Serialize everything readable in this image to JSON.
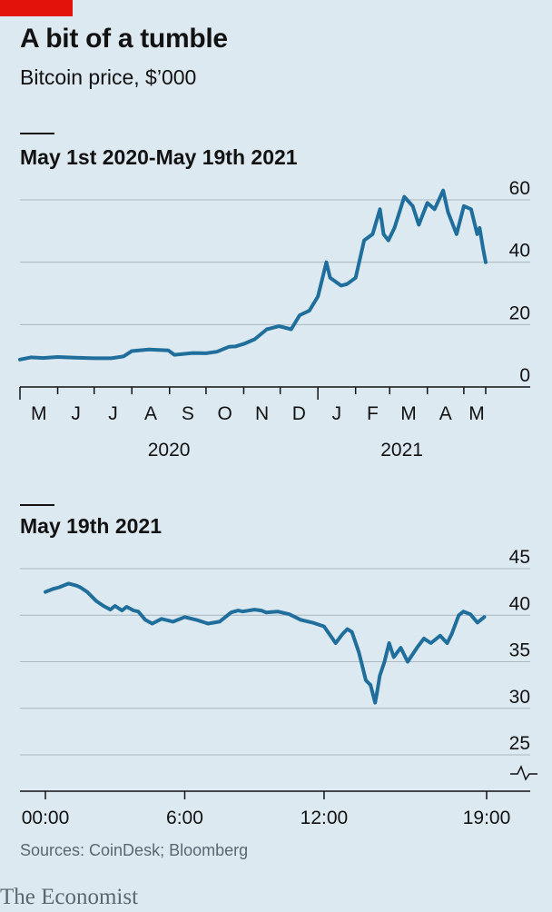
{
  "header": {
    "title": "A bit of a tumble",
    "subtitle": "Bitcoin price, $’000"
  },
  "footer": {
    "source": "Sources: CoinDesk; Bloomberg",
    "logo": "The Economist"
  },
  "colors": {
    "line": "#1f6e9c",
    "grid": "#aab6c0",
    "accent_red": "#e3120b"
  },
  "chart_data": [
    {
      "type": "line",
      "title": "May 1st 2020-May 19th 2021",
      "y_ticks": [
        0,
        20,
        40,
        60
      ],
      "ylim": [
        0,
        60
      ],
      "month_labels": [
        "M",
        "J",
        "J",
        "A",
        "S",
        "O",
        "N",
        "D",
        "J",
        "F",
        "M",
        "A",
        "M"
      ],
      "year_labels": [
        "2020",
        "2021"
      ],
      "series": [
        {
          "x": [
            "2020-05-01",
            "2020-05-10",
            "2020-05-20",
            "2020-06-01",
            "2020-06-15",
            "2020-07-01",
            "2020-07-15",
            "2020-07-25",
            "2020-08-01",
            "2020-08-15",
            "2020-08-31",
            "2020-09-05",
            "2020-09-20",
            "2020-10-01",
            "2020-10-10",
            "2020-10-20",
            "2020-10-25",
            "2020-11-01",
            "2020-11-10",
            "2020-11-20",
            "2020-11-25",
            "2020-11-30",
            "2020-12-10",
            "2020-12-17",
            "2020-12-25",
            "2021-01-01",
            "2021-01-08",
            "2021-01-11",
            "2021-01-20",
            "2021-01-25",
            "2021-02-01",
            "2021-02-08",
            "2021-02-15",
            "2021-02-21",
            "2021-02-24",
            "2021-02-28",
            "2021-03-05",
            "2021-03-13",
            "2021-03-20",
            "2021-03-25",
            "2021-04-01",
            "2021-04-07",
            "2021-04-14",
            "2021-04-18",
            "2021-04-25",
            "2021-05-01",
            "2021-05-07",
            "2021-05-12",
            "2021-05-14",
            "2021-05-17",
            "2021-05-19"
          ],
          "y": [
            8.8,
            9.5,
            9.3,
            9.6,
            9.4,
            9.2,
            9.2,
            9.8,
            11.5,
            12.0,
            11.7,
            10.3,
            10.9,
            10.8,
            11.3,
            12.9,
            13.0,
            13.8,
            15.3,
            18.5,
            19.0,
            19.5,
            18.5,
            23.0,
            24.5,
            29.0,
            40.0,
            35.0,
            32.5,
            33.0,
            35.0,
            47.0,
            49.0,
            57.0,
            49.0,
            47.0,
            51.0,
            61.0,
            58.0,
            52.0,
            59.0,
            57.0,
            63.0,
            56.0,
            49.0,
            58.0,
            57.0,
            49.0,
            51.0,
            44.0,
            40.0
          ]
        }
      ]
    },
    {
      "type": "line",
      "title": "May 19th 2021",
      "y_ticks": [
        25,
        30,
        35,
        40,
        45
      ],
      "ylim": [
        25,
        45
      ],
      "x_ticks": [
        "00:00",
        "6:00",
        "12:00",
        "19:00"
      ],
      "series": [
        {
          "x": [
            0,
            0.3,
            0.6,
            1.0,
            1.3,
            1.5,
            1.8,
            2.2,
            2.5,
            2.8,
            3.0,
            3.3,
            3.5,
            3.8,
            4.0,
            4.3,
            4.6,
            5.0,
            5.5,
            5.8,
            6.0,
            6.5,
            7.0,
            7.5,
            8.0,
            8.3,
            8.5,
            9.0,
            9.3,
            9.5,
            10.0,
            10.5,
            11.0,
            11.5,
            12.0,
            12.5,
            12.8,
            13.0,
            13.2,
            13.5,
            13.8,
            14.0,
            14.2,
            14.3,
            14.4,
            14.6,
            14.8,
            15.0,
            15.3,
            15.6,
            16.0,
            16.3,
            16.6,
            17.0,
            17.3,
            17.5,
            17.8,
            18.0,
            18.3,
            18.6,
            18.9
          ],
          "y": [
            42.5,
            42.8,
            43.0,
            43.4,
            43.2,
            43.0,
            42.5,
            41.5,
            41.0,
            40.6,
            41.0,
            40.5,
            40.9,
            40.5,
            40.4,
            39.5,
            39.1,
            39.6,
            39.3,
            39.6,
            39.8,
            39.5,
            39.1,
            39.3,
            40.3,
            40.5,
            40.4,
            40.6,
            40.5,
            40.3,
            40.4,
            40.1,
            39.5,
            39.2,
            38.8,
            37.0,
            38.0,
            38.5,
            38.2,
            36.0,
            33.0,
            32.5,
            30.6,
            32.0,
            33.5,
            35.0,
            37.0,
            35.5,
            36.5,
            35.0,
            36.5,
            37.5,
            37.0,
            37.8,
            37.0,
            38.0,
            40.0,
            40.4,
            40.1,
            39.2,
            39.8
          ]
        }
      ]
    }
  ]
}
